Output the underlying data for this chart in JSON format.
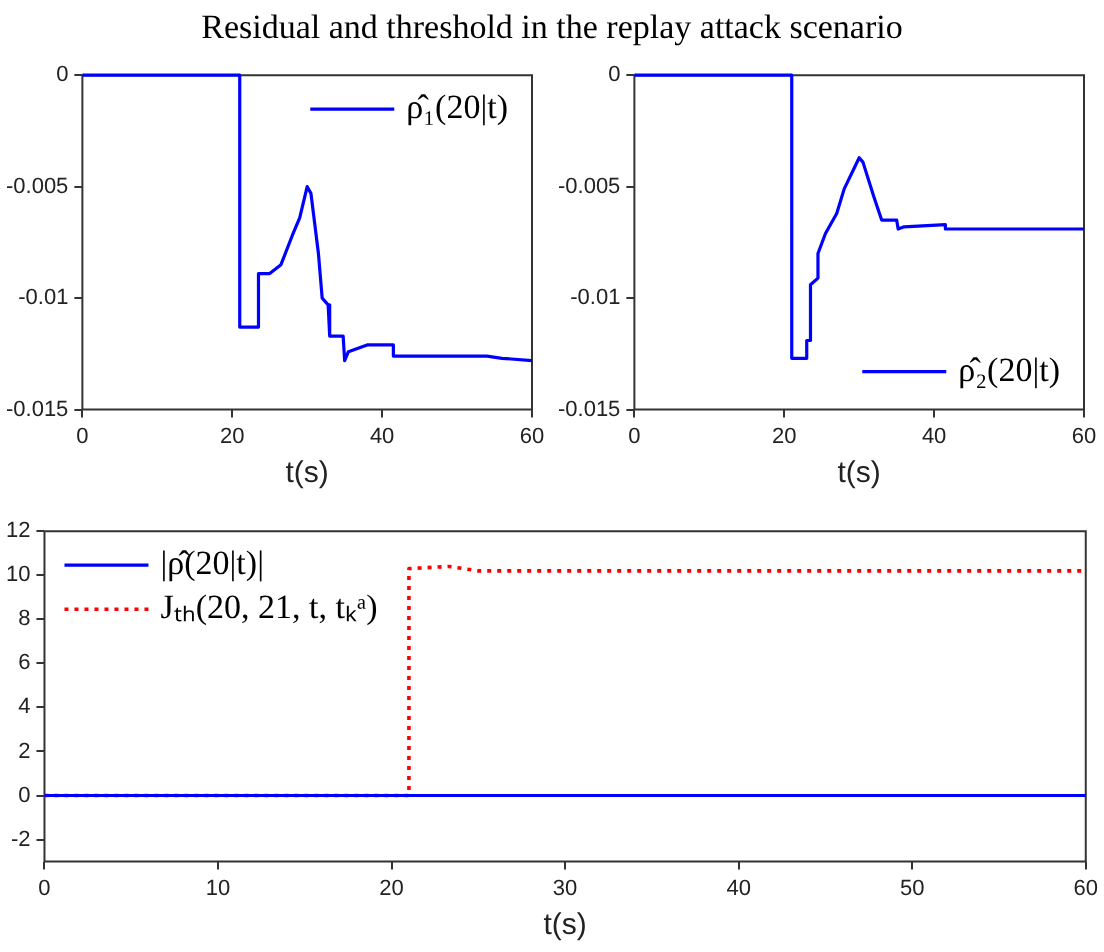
{
  "chart_data": [
    {
      "type": "line",
      "title": "Residual and threshold in the replay attack scenario",
      "xlabel": "t(s)",
      "xlim": [
        0,
        60
      ],
      "xticks": [
        0,
        20,
        40,
        60
      ],
      "ylim": [
        -0.015,
        0
      ],
      "yticks": [
        -0.015,
        -0.01,
        -0.005,
        0
      ],
      "grid": false,
      "legend": "top right",
      "marker": "none",
      "series": [
        {
          "name": "ρ̂₁(20|t)",
          "color": "#0000ff",
          "line_style": "solid",
          "x": [
            0,
            21,
            21,
            23.5,
            23.5,
            25,
            26.5,
            28,
            29,
            30,
            30.5,
            31.5,
            32,
            32.8,
            33,
            34.8,
            35,
            35.5,
            38,
            41.5,
            41.5,
            54,
            56,
            60
          ],
          "values": [
            0,
            0,
            -0.0113,
            -0.0113,
            -0.0089,
            -0.0089,
            -0.0085,
            -0.0072,
            -0.0064,
            -0.005,
            -0.0053,
            -0.008,
            -0.01,
            -0.0103,
            -0.0117,
            -0.0117,
            -0.0128,
            -0.0124,
            -0.0121,
            -0.0121,
            -0.0126,
            -0.0126,
            -0.0127,
            -0.0128
          ]
        }
      ]
    },
    {
      "type": "line",
      "xlabel": "t(s)",
      "xlim": [
        0,
        60
      ],
      "xticks": [
        0,
        20,
        40,
        60
      ],
      "ylim": [
        -0.015,
        0
      ],
      "yticks": [
        -0.015,
        -0.01,
        -0.005,
        0
      ],
      "grid": false,
      "legend": "bottom right",
      "marker": "none",
      "series": [
        {
          "name": "ρ̂₂(20|t)",
          "color": "#0000ff",
          "line_style": "solid",
          "x": [
            0,
            21,
            21,
            23,
            23,
            23.5,
            23.5,
            24.5,
            24.5,
            25.5,
            27,
            28,
            30,
            30.5,
            32,
            33,
            35,
            35.2,
            36,
            41.5,
            41.5,
            60
          ],
          "values": [
            0,
            0,
            -0.0127,
            -0.0127,
            -0.0119,
            -0.0119,
            -0.0094,
            -0.0091,
            -0.008,
            -0.0071,
            -0.0062,
            -0.0051,
            -0.0037,
            -0.0039,
            -0.0055,
            -0.0065,
            -0.0065,
            -0.0069,
            -0.0068,
            -0.0067,
            -0.0069,
            -0.0069
          ]
        }
      ]
    },
    {
      "type": "line",
      "xlabel": "t(s)",
      "xlim": [
        0,
        60
      ],
      "xticks": [
        0,
        10,
        20,
        30,
        40,
        50,
        60
      ],
      "ylim": [
        -3,
        12
      ],
      "yticks": [
        -2,
        0,
        2,
        4,
        6,
        8,
        10,
        12
      ],
      "grid": false,
      "legend": "top left",
      "marker": "none",
      "series": [
        {
          "name": "|ρ̂(20|t)|",
          "color": "#0000ff",
          "line_style": "solid",
          "x": [
            0,
            21,
            60
          ],
          "values": [
            0,
            0,
            0
          ]
        },
        {
          "name": "Jₜₕ(20, 21, t, tₖᵃ)",
          "color": "#ff0000",
          "line_style": "dotted",
          "x": [
            0,
            21,
            21,
            23.3,
            25,
            60
          ],
          "values": [
            0,
            0,
            10.3,
            10.4,
            10.2,
            10.2
          ]
        }
      ]
    }
  ]
}
